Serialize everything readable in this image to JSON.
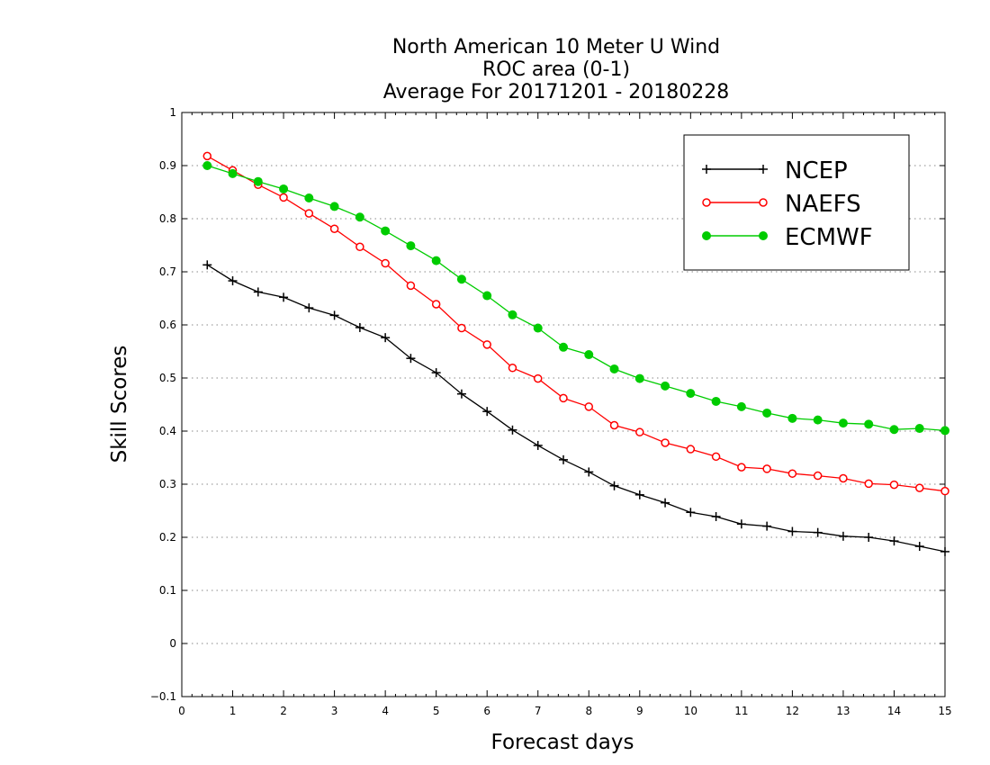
{
  "chart_data": {
    "type": "line",
    "title": [
      "North American 10 Meter U Wind",
      "ROC area (0-1)",
      "Average For 20171201 - 20180228"
    ],
    "xlabel": "Forecast days",
    "ylabel": "Skill Scores",
    "xlim": [
      0,
      15
    ],
    "ylim": [
      -0.1,
      1
    ],
    "xticks": [
      "0",
      "1",
      "2",
      "3",
      "4",
      "5",
      "6",
      "7",
      "8",
      "9",
      "10",
      "11",
      "12",
      "13",
      "14",
      "15"
    ],
    "yticks": [
      "−0.1",
      "0",
      "0.1",
      "0.2",
      "0.3",
      "0.4",
      "0.5",
      "0.6",
      "0.7",
      "0.8",
      "0.9",
      "1"
    ],
    "grid": "horizontal dotted",
    "legend_position": "top-right",
    "x": [
      0.5,
      1,
      1.5,
      2,
      2.5,
      3,
      3.5,
      4,
      4.5,
      5,
      5.5,
      6,
      6.5,
      7,
      7.5,
      8,
      8.5,
      9,
      9.5,
      10,
      10.5,
      11,
      11.5,
      12,
      12.5,
      13,
      13.5,
      14,
      14.5,
      15
    ],
    "series": [
      {
        "name": "NCEP",
        "color": "#000000",
        "marker": "plus",
        "values": [
          0.713,
          0.683,
          0.662,
          0.652,
          0.632,
          0.618,
          0.595,
          0.576,
          0.537,
          0.51,
          0.47,
          0.437,
          0.402,
          0.373,
          0.346,
          0.323,
          0.297,
          0.28,
          0.265,
          0.247,
          0.239,
          0.225,
          0.221,
          0.211,
          0.209,
          0.202,
          0.2,
          0.193,
          0.183,
          0.173
        ]
      },
      {
        "name": "NAEFS",
        "color": "#ff0000",
        "marker": "open-circle",
        "values": [
          0.918,
          0.891,
          0.864,
          0.84,
          0.81,
          0.781,
          0.747,
          0.716,
          0.674,
          0.639,
          0.594,
          0.563,
          0.519,
          0.499,
          0.462,
          0.446,
          0.411,
          0.398,
          0.378,
          0.366,
          0.352,
          0.332,
          0.329,
          0.32,
          0.316,
          0.311,
          0.301,
          0.299,
          0.293,
          0.287
        ]
      },
      {
        "name": "ECMWF",
        "color": "#00cc00",
        "marker": "filled-circle",
        "values": [
          0.9,
          0.885,
          0.87,
          0.856,
          0.839,
          0.823,
          0.803,
          0.777,
          0.749,
          0.721,
          0.686,
          0.655,
          0.619,
          0.594,
          0.558,
          0.544,
          0.517,
          0.499,
          0.485,
          0.471,
          0.456,
          0.446,
          0.434,
          0.424,
          0.421,
          0.415,
          0.413,
          0.403,
          0.405,
          0.401
        ]
      }
    ]
  }
}
